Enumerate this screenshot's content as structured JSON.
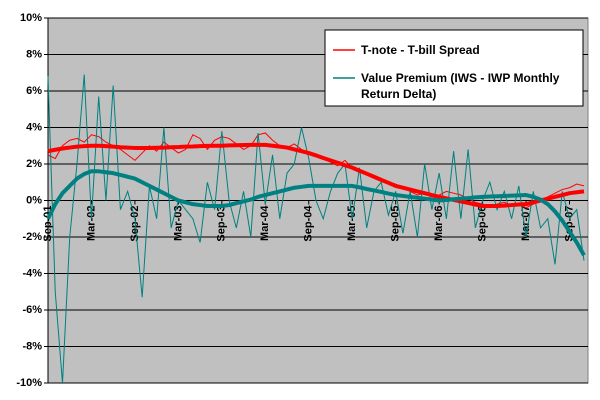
{
  "chart_data": {
    "type": "line",
    "categories": [
      "Sep-01",
      null,
      null,
      null,
      null,
      null,
      "Mar-02",
      null,
      null,
      null,
      null,
      null,
      "Sep-02",
      null,
      null,
      null,
      null,
      null,
      "Mar-03",
      null,
      null,
      null,
      null,
      null,
      "Sep-03",
      null,
      null,
      null,
      null,
      null,
      "Mar-04",
      null,
      null,
      null,
      null,
      null,
      "Sep-04",
      null,
      null,
      null,
      null,
      null,
      "Mar-05",
      null,
      null,
      null,
      null,
      null,
      "Sep-05",
      null,
      null,
      null,
      null,
      null,
      "Mar-06",
      null,
      null,
      null,
      null,
      null,
      "Sep-06",
      null,
      null,
      null,
      null,
      null,
      "Mar-07",
      null,
      null,
      null,
      null,
      null,
      "Sep-07",
      null,
      null
    ],
    "series": [
      {
        "name": "T-note - T-bill Spread",
        "color": "#ff0000",
        "values": [
          2.5,
          2.3,
          3.0,
          3.3,
          3.4,
          3.2,
          3.6,
          3.5,
          3.2,
          3.0,
          2.8,
          2.5,
          2.2,
          2.6,
          3.0,
          2.7,
          3.2,
          2.9,
          2.6,
          2.8,
          3.6,
          3.4,
          2.8,
          3.3,
          3.5,
          3.4,
          3.1,
          2.8,
          3.0,
          3.6,
          3.7,
          3.3,
          3.0,
          2.9,
          3.1,
          2.8,
          2.6,
          2.4,
          2.3,
          2.1,
          1.9,
          2.2,
          1.8,
          1.7,
          1.5,
          1.3,
          1.2,
          1.0,
          0.9,
          0.7,
          0.5,
          0.3,
          0.4,
          0.2,
          0.3,
          0.5,
          0.4,
          0.3,
          0.1,
          -0.1,
          -0.2,
          -0.3,
          -0.2,
          -0.1,
          -0.3,
          -0.2,
          -0.4,
          -0.2,
          0.0,
          0.2,
          0.4,
          0.6,
          0.7,
          0.9,
          0.8
        ],
        "trend": [
          2.7,
          2.78,
          2.85,
          2.9,
          2.95,
          2.98,
          3.0,
          3.0,
          2.98,
          2.95,
          2.92,
          2.9,
          2.88,
          2.88,
          2.88,
          2.89,
          2.9,
          2.92,
          2.93,
          2.95,
          2.96,
          2.98,
          2.99,
          3.0,
          3.0,
          3.02,
          3.03,
          3.04,
          3.05,
          3.05,
          3.05,
          3.0,
          2.95,
          2.9,
          2.8,
          2.7,
          2.6,
          2.47,
          2.33,
          2.2,
          2.07,
          1.93,
          1.8,
          1.63,
          1.47,
          1.3,
          1.13,
          0.97,
          0.8,
          0.7,
          0.6,
          0.5,
          0.4,
          0.3,
          0.2,
          0.12,
          0.03,
          -0.05,
          -0.13,
          -0.22,
          -0.3,
          -0.3,
          -0.3,
          -0.28,
          -0.25,
          -0.22,
          -0.2,
          -0.1,
          0.0,
          0.1,
          0.2,
          0.3,
          0.4,
          0.45,
          0.5
        ]
      },
      {
        "name": "Value Premium (IWS - IWP Monthly Return Delta)",
        "color": "#008080",
        "values": [
          6.8,
          -5,
          -10,
          -2,
          2,
          6.9,
          -1,
          5.7,
          0,
          6.3,
          -0.5,
          0.5,
          -1,
          -5.3,
          0.8,
          -1,
          4,
          -1.5,
          0,
          -0.5,
          -1,
          -2.3,
          1,
          -0.5,
          3.8,
          0,
          -1.5,
          0.5,
          -2,
          3.7,
          -0.2,
          2.5,
          -1,
          1.5,
          2,
          4,
          2.3,
          0,
          -1,
          0.5,
          1.5,
          2,
          -1,
          1.8,
          -1.5,
          0.5,
          1,
          -0.8,
          0.5,
          -1.8,
          0.5,
          -2,
          2,
          -0.5,
          1.5,
          -1,
          2.7,
          -1,
          2.8,
          -1.5,
          0,
          1,
          -0.5,
          0.5,
          -1,
          0.8,
          -2,
          0.5,
          -1.5,
          -1,
          -3.5,
          0.5,
          -1,
          -0.5,
          -3.3
        ],
        "trend": [
          -1.0,
          -0.2,
          0.4,
          0.8,
          1.2,
          1.45,
          1.6,
          1.6,
          1.55,
          1.5,
          1.4,
          1.3,
          1.2,
          1.0,
          0.8,
          0.6,
          0.4,
          0.2,
          0.0,
          -0.1,
          -0.2,
          -0.25,
          -0.3,
          -0.3,
          -0.3,
          -0.25,
          -0.15,
          -0.05,
          0.05,
          0.2,
          0.3,
          0.4,
          0.5,
          0.6,
          0.7,
          0.75,
          0.8,
          0.8,
          0.8,
          0.8,
          0.8,
          0.8,
          0.8,
          0.72,
          0.63,
          0.55,
          0.47,
          0.38,
          0.3,
          0.25,
          0.2,
          0.15,
          0.1,
          0.05,
          0.0,
          0.03,
          0.07,
          0.1,
          0.13,
          0.17,
          0.2,
          0.22,
          0.23,
          0.25,
          0.27,
          0.28,
          0.3,
          0.2,
          0.05,
          -0.2,
          -0.6,
          -1.1,
          -1.7,
          -2.3,
          -3.0
        ]
      }
    ],
    "ylim": [
      -10,
      10
    ],
    "yticks": [
      {
        "value": -10,
        "label": "-10%"
      },
      {
        "value": -8,
        "label": "-8%"
      },
      {
        "value": -6,
        "label": "-6%"
      },
      {
        "value": -4,
        "label": "-4%"
      },
      {
        "value": -2,
        "label": "-2%"
      },
      {
        "value": 0,
        "label": "0%"
      },
      {
        "value": 2,
        "label": "2%"
      },
      {
        "value": 4,
        "label": "4%"
      },
      {
        "value": 6,
        "label": "6%"
      },
      {
        "value": 8,
        "label": "8%"
      },
      {
        "value": 10,
        "label": "10%"
      }
    ],
    "grid": true,
    "plot_background": "#c0c0c0",
    "legend": "top-right"
  }
}
